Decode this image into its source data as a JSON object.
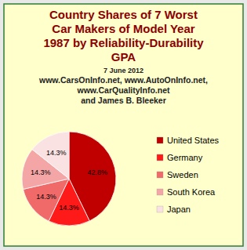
{
  "chart_data": {
    "type": "pie",
    "title": [
      "Country Shares of 7 Worst",
      "Car Makers of Model Year",
      "1987 by Reliability-Durability",
      "GPA"
    ],
    "subtitle": [
      "7 June 2012",
      "www.CarsOnInfo.net, www.AutoOnInfo.net,",
      "www.CarQualityInfo.net",
      "and James B. Bleeker"
    ],
    "categories": [
      "United States",
      "Germany",
      "Sweden",
      "South Korea",
      "Japan"
    ],
    "values": [
      42.8,
      14.3,
      14.3,
      14.3,
      14.3
    ],
    "value_labels": [
      "42.8%",
      "14.3%",
      "14.3%",
      "14.3%",
      "14.3%"
    ],
    "colors": [
      "#c00000",
      "#ff1a1a",
      "#f06a6a",
      "#f4a6a6",
      "#fbe2e2"
    ],
    "data_labels": true,
    "legend": "right"
  }
}
